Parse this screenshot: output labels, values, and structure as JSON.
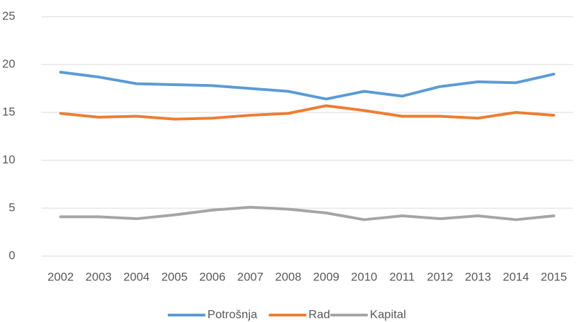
{
  "chart_data": {
    "type": "line",
    "categories": [
      "2002",
      "2003",
      "2004",
      "2005",
      "2006",
      "2007",
      "2008",
      "2009",
      "2010",
      "2011",
      "2012",
      "2013",
      "2014",
      "2015"
    ],
    "series": [
      {
        "name": "Potrošnja",
        "color": "#5b9bd5",
        "values": [
          19.2,
          18.7,
          18.0,
          17.9,
          17.8,
          17.5,
          17.2,
          16.4,
          17.2,
          16.7,
          17.7,
          18.2,
          18.1,
          19.0
        ]
      },
      {
        "name": "Rad",
        "color": "#ed7d31",
        "values": [
          14.9,
          14.5,
          14.6,
          14.3,
          14.4,
          14.7,
          14.9,
          15.7,
          15.2,
          14.6,
          14.6,
          14.4,
          15.0,
          14.7
        ]
      },
      {
        "name": "Kapital",
        "color": "#a5a5a5",
        "values": [
          4.1,
          4.1,
          3.9,
          4.3,
          4.8,
          5.1,
          4.9,
          4.5,
          3.8,
          4.2,
          3.9,
          4.2,
          3.8,
          4.2
        ]
      }
    ],
    "ylim": [
      0,
      25
    ],
    "yticks": [
      0,
      5,
      10,
      15,
      20,
      25
    ],
    "grid": true,
    "legend": "bottom"
  }
}
